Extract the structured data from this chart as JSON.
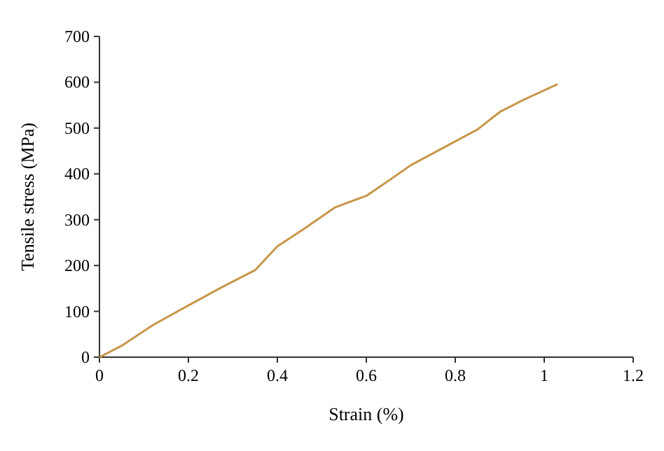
{
  "chart_data": {
    "type": "line",
    "xlabel": "Strain (%)",
    "ylabel": "Tensile stress (MPa)",
    "xlim": [
      0,
      1.2
    ],
    "xticks": [
      0,
      0.2,
      0.4,
      0.6,
      0.8,
      1,
      1.2
    ],
    "ylim": [
      0,
      700
    ],
    "yticks": [
      0,
      100,
      200,
      300,
      400,
      500,
      600,
      700
    ],
    "grid": false,
    "marker": "none",
    "line_style": "solid",
    "series": [
      {
        "color": "#c8964a",
        "x": [
          0,
          0.05,
          0.12,
          0.2,
          0.27,
          0.35,
          0.4,
          0.46,
          0.53,
          0.56,
          0.6,
          0.65,
          0.7,
          0.75,
          0.8,
          0.85,
          0.9,
          0.95,
          1.03
        ],
        "values": [
          0,
          25,
          70,
          113,
          150,
          190,
          242,
          280,
          327,
          338,
          352,
          385,
          419,
          445,
          471,
          497,
          535,
          560,
          596
        ]
      }
    ]
  }
}
